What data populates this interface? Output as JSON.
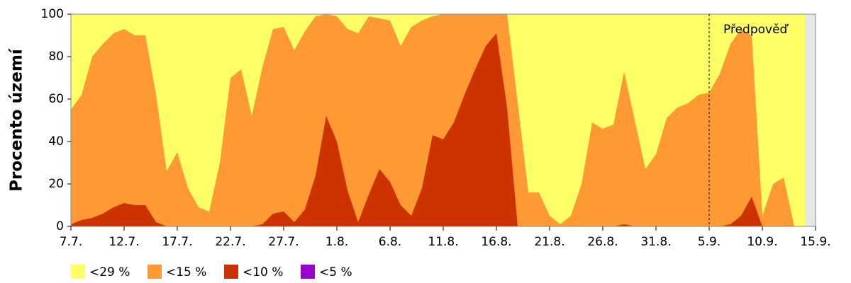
{
  "chart_data": {
    "type": "area",
    "y_label": "Procento území",
    "annotation": {
      "text": "Předpověď",
      "at": "5.9."
    },
    "categories": [
      "7.7.",
      null,
      null,
      null,
      null,
      "12.7.",
      null,
      null,
      null,
      null,
      "17.7.",
      null,
      null,
      null,
      null,
      "22.7.",
      null,
      null,
      null,
      null,
      "27.7.",
      null,
      null,
      null,
      null,
      "1.8.",
      null,
      null,
      null,
      null,
      "6.8.",
      null,
      null,
      null,
      null,
      "11.8.",
      null,
      null,
      null,
      null,
      "16.8.",
      null,
      null,
      null,
      null,
      "21.8.",
      null,
      null,
      null,
      null,
      "26.8.",
      null,
      null,
      null,
      null,
      "31.8.",
      null,
      null,
      null,
      null,
      "5.9.",
      null,
      null,
      null,
      null,
      "10.9.",
      null,
      null,
      null,
      null,
      "15.9."
    ],
    "series": [
      {
        "name": "<29 %",
        "color": "#ffff66",
        "values": [
          100,
          100,
          100,
          100,
          100,
          100,
          100,
          100,
          100,
          100,
          100,
          100,
          100,
          100,
          100,
          100,
          100,
          100,
          100,
          100,
          100,
          100,
          100,
          100,
          100,
          100,
          100,
          100,
          100,
          100,
          100,
          100,
          100,
          100,
          100,
          100,
          100,
          100,
          100,
          100,
          100,
          100,
          100,
          100,
          100,
          100,
          100,
          100,
          100,
          100,
          100,
          100,
          100,
          100,
          100,
          100,
          100,
          100,
          100,
          100,
          100,
          100,
          100,
          100,
          100,
          100,
          100,
          100,
          100,
          100,
          null
        ]
      },
      {
        "name": "<15 %",
        "color": "#ff9933",
        "values": [
          55,
          62,
          80,
          86,
          91,
          93,
          90,
          90,
          62,
          26,
          35,
          18,
          9,
          7,
          30,
          70,
          74,
          52,
          75,
          93,
          94,
          83,
          92,
          99,
          100,
          99,
          93,
          91,
          99,
          98,
          97,
          85,
          94,
          97,
          99,
          100,
          100,
          100,
          100,
          100,
          100,
          100,
          58,
          16,
          16,
          5,
          1,
          5,
          20,
          49,
          46,
          48,
          73,
          50,
          27,
          34,
          51,
          56,
          58,
          62,
          63,
          72,
          86,
          93,
          90,
          5,
          20,
          23,
          0,
          0,
          null
        ]
      },
      {
        "name": "<10 %",
        "color": "#cc3300",
        "values": [
          1,
          3,
          4,
          6,
          9,
          11,
          10,
          10,
          2,
          0,
          0,
          0,
          0,
          0,
          0,
          0,
          0,
          0,
          1,
          6,
          7,
          2,
          8,
          24,
          52,
          40,
          17,
          2,
          15,
          27,
          21,
          10,
          5,
          18,
          43,
          41,
          49,
          62,
          74,
          85,
          91,
          56,
          0,
          0,
          0,
          0,
          0,
          0,
          0,
          0,
          0,
          0,
          1,
          0,
          0,
          0,
          0,
          0,
          0,
          0,
          0,
          0,
          1,
          5,
          14,
          0,
          0,
          0,
          0,
          0,
          null
        ]
      },
      {
        "name": "<5 %",
        "color": "#9900cc",
        "values": [
          0,
          0,
          0,
          0,
          0,
          0,
          0,
          0,
          0,
          0,
          0,
          0,
          0,
          0,
          0,
          0,
          0,
          0,
          0,
          0,
          0,
          0,
          0,
          0,
          0,
          0,
          0,
          0,
          0,
          0,
          0,
          0,
          0,
          0,
          0,
          0,
          0,
          0,
          0,
          0,
          0,
          0,
          0,
          0,
          0,
          0,
          0,
          0,
          0,
          0,
          0,
          0,
          0,
          0,
          0,
          0,
          0,
          0,
          0,
          0,
          0,
          0,
          0,
          0,
          0,
          0,
          0,
          0,
          0,
          0,
          null
        ]
      }
    ],
    "ylim": [
      0,
      100
    ],
    "yticks": [
      0,
      20,
      40,
      60,
      80,
      100
    ]
  }
}
